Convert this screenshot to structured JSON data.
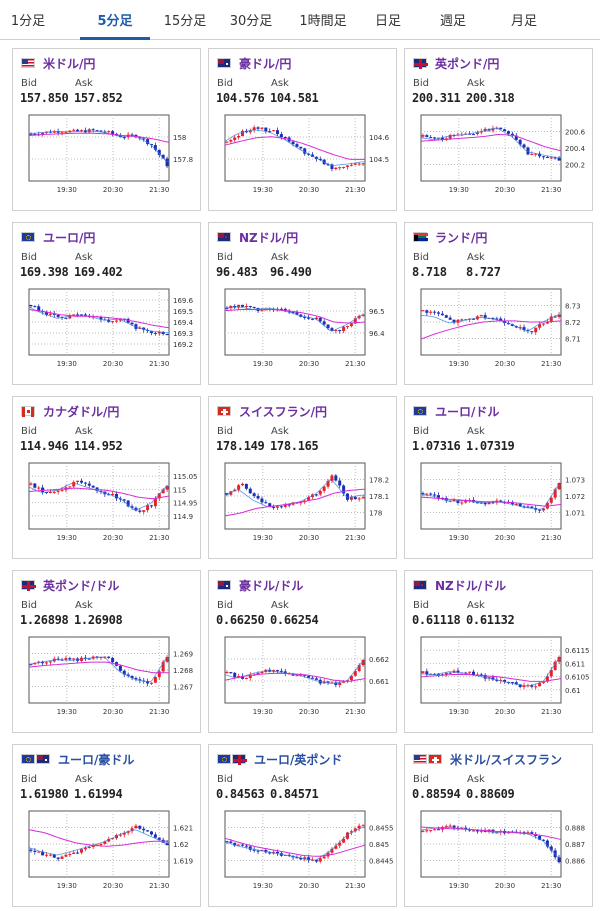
{
  "tabs": [
    {
      "label": "1分足",
      "active": false
    },
    {
      "label": "5分足",
      "active": true
    },
    {
      "label": "15分足",
      "active": false
    },
    {
      "label": "30分足",
      "active": false
    },
    {
      "label": "1時間足",
      "active": false
    },
    {
      "label": "日足",
      "active": false
    },
    {
      "label": "週足",
      "active": false
    },
    {
      "label": "月足",
      "active": false
    }
  ],
  "labels": {
    "bid": "Bid",
    "ask": "Ask"
  },
  "colors": {
    "up": "#e8202a",
    "down": "#1a2fb8",
    "ma": "#d82bd8",
    "ma2": "#2f7fd9",
    "title_link": "#6b2fa0"
  },
  "pairs": [
    {
      "name": "米ドル/円",
      "flag": "us",
      "bid": "157.850",
      "ask": "157.852",
      "ticks": [
        "158",
        "157.8"
      ],
      "times": [
        "19:30",
        "20:30",
        "21:30"
      ],
      "trend": [
        0.75,
        0.78,
        0.8,
        0.79,
        0.81,
        0.78,
        0.7,
        0.72,
        0.55,
        0.2
      ],
      "ma": [
        0.72,
        0.74,
        0.75,
        0.76,
        0.76,
        0.75,
        0.72,
        0.7,
        0.66,
        0.6
      ]
    },
    {
      "name": "豪ドル/円",
      "flag": "au",
      "bid": "104.576",
      "ask": "104.581",
      "ticks": [
        "104.6",
        "104.5"
      ],
      "times": [
        "19:30",
        "20:30",
        "21:30"
      ],
      "trend": [
        0.6,
        0.78,
        0.85,
        0.8,
        0.65,
        0.45,
        0.3,
        0.15,
        0.2,
        0.25
      ],
      "ma": [
        0.55,
        0.62,
        0.68,
        0.7,
        0.66,
        0.58,
        0.48,
        0.38,
        0.3,
        0.3
      ]
    },
    {
      "name": "英ポンド/円",
      "flag": "gb",
      "bid": "200.311",
      "ask": "200.318",
      "ticks": [
        "200.6",
        "200.4",
        "200.2"
      ],
      "times": [
        "19:30",
        "20:30",
        "21:30"
      ],
      "trend": [
        0.7,
        0.65,
        0.72,
        0.75,
        0.8,
        0.88,
        0.7,
        0.4,
        0.35,
        0.3
      ],
      "ma": [
        0.62,
        0.64,
        0.66,
        0.68,
        0.7,
        0.74,
        0.72,
        0.62,
        0.52,
        0.45
      ]
    },
    {
      "name": "ユーロ/円",
      "flag": "eu",
      "bid": "169.398",
      "ask": "169.402",
      "ticks": [
        "169.6",
        "169.5",
        "169.4",
        "169.3",
        "169.2"
      ],
      "times": [
        "19:30",
        "20:30",
        "21:30"
      ],
      "trend": [
        0.8,
        0.65,
        0.55,
        0.62,
        0.6,
        0.52,
        0.55,
        0.4,
        0.32,
        0.3
      ],
      "ma": [
        0.72,
        0.68,
        0.63,
        0.6,
        0.6,
        0.58,
        0.55,
        0.5,
        0.44,
        0.4
      ]
    },
    {
      "name": "NZドル/円",
      "flag": "nz",
      "bid": "96.483",
      "ask": "96.490",
      "ticks": [
        "96.5",
        "96.4"
      ],
      "times": [
        "19:30",
        "20:30",
        "21:30"
      ],
      "trend": [
        0.75,
        0.78,
        0.72,
        0.75,
        0.7,
        0.6,
        0.55,
        0.3,
        0.45,
        0.65
      ],
      "ma": [
        0.7,
        0.72,
        0.72,
        0.72,
        0.7,
        0.66,
        0.6,
        0.5,
        0.48,
        0.5
      ]
    },
    {
      "name": "ランド/円",
      "flag": "za",
      "bid": "8.718",
      "ask": "8.727",
      "ticks": [
        "8.73",
        "8.72",
        "8.71"
      ],
      "times": [
        "19:30",
        "20:30",
        "21:30"
      ],
      "trend": [
        0.7,
        0.65,
        0.5,
        0.55,
        0.6,
        0.55,
        0.45,
        0.3,
        0.5,
        0.65
      ],
      "ma": [
        0.2,
        0.3,
        0.38,
        0.45,
        0.5,
        0.52,
        0.52,
        0.5,
        0.5,
        0.52
      ]
    },
    {
      "name": "カナダドル/円",
      "flag": "ca",
      "bid": "114.946",
      "ask": "114.952",
      "ticks": [
        "115.05",
        "115",
        "114.95",
        "114.9"
      ],
      "times": [
        "19:30",
        "20:30",
        "21:30"
      ],
      "trend": [
        0.7,
        0.55,
        0.6,
        0.75,
        0.65,
        0.55,
        0.45,
        0.2,
        0.35,
        0.7
      ],
      "ma": [
        0.58,
        0.6,
        0.62,
        0.64,
        0.62,
        0.6,
        0.55,
        0.48,
        0.45,
        0.5
      ]
    },
    {
      "name": "スイスフラン/円",
      "flag": "ch",
      "bid": "178.149",
      "ask": "178.165",
      "ticks": [
        "178.2",
        "178.1",
        "178"
      ],
      "times": [
        "19:30",
        "20:30",
        "21:30"
      ],
      "trend": [
        0.55,
        0.7,
        0.45,
        0.3,
        0.35,
        0.4,
        0.55,
        0.85,
        0.45,
        0.5
      ],
      "ma": [
        0.15,
        0.2,
        0.28,
        0.32,
        0.35,
        0.4,
        0.45,
        0.55,
        0.6,
        0.62
      ]
    },
    {
      "name": "ユーロ/ドル",
      "flag": "eu",
      "bid": "1.07316",
      "ask": "1.07319",
      "ticks": [
        "1.073",
        "1.072",
        "1.071"
      ],
      "times": [
        "19:30",
        "20:30",
        "21:30"
      ],
      "trend": [
        0.55,
        0.5,
        0.4,
        0.42,
        0.38,
        0.4,
        0.35,
        0.28,
        0.25,
        0.75
      ],
      "ma": [
        0.48,
        0.46,
        0.44,
        0.42,
        0.4,
        0.4,
        0.38,
        0.35,
        0.32,
        0.35
      ]
    },
    {
      "name": "英ポンド/ドル",
      "flag": "gb",
      "bid": "1.26898",
      "ask": "1.26908",
      "ticks": [
        "1.269",
        "1.268",
        "1.267"
      ],
      "times": [
        "19:30",
        "20:30",
        "21:30"
      ],
      "trend": [
        0.6,
        0.65,
        0.7,
        0.68,
        0.72,
        0.75,
        0.45,
        0.3,
        0.25,
        0.75
      ],
      "ma": [
        0.55,
        0.58,
        0.6,
        0.62,
        0.64,
        0.64,
        0.58,
        0.5,
        0.45,
        0.45
      ]
    },
    {
      "name": "豪ドル/ドル",
      "flag": "au",
      "bid": "0.66250",
      "ask": "0.66254",
      "ticks": [
        "0.662",
        "0.661"
      ],
      "times": [
        "19:30",
        "20:30",
        "21:30"
      ],
      "trend": [
        0.45,
        0.35,
        0.45,
        0.5,
        0.45,
        0.4,
        0.3,
        0.25,
        0.3,
        0.7
      ],
      "ma": [
        0.32,
        0.38,
        0.42,
        0.44,
        0.44,
        0.42,
        0.38,
        0.32,
        0.3,
        0.35
      ]
    },
    {
      "name": "NZドル/ドル",
      "flag": "nz",
      "bid": "0.61118",
      "ask": "0.61132",
      "ticks": [
        "0.6115",
        "0.611",
        "0.6105",
        "0.61"
      ],
      "times": [
        "19:30",
        "20:30",
        "21:30"
      ],
      "trend": [
        0.45,
        0.42,
        0.48,
        0.45,
        0.38,
        0.32,
        0.25,
        0.2,
        0.28,
        0.75
      ],
      "ma": [
        0.38,
        0.4,
        0.42,
        0.42,
        0.4,
        0.38,
        0.34,
        0.3,
        0.3,
        0.35
      ]
    },
    {
      "name": "ユーロ/豪ドル",
      "flag": "euau",
      "bid": "1.61980",
      "ask": "1.61994",
      "ticks": [
        "1.621",
        "1.62",
        "1.619"
      ],
      "times": [
        "19:30",
        "20:30",
        "21:30"
      ],
      "trend": [
        0.4,
        0.3,
        0.25,
        0.35,
        0.45,
        0.55,
        0.7,
        0.8,
        0.65,
        0.5
      ],
      "ma": [
        0.75,
        0.7,
        0.6,
        0.52,
        0.48,
        0.46,
        0.48,
        0.52,
        0.55,
        0.55
      ]
    },
    {
      "name": "ユーロ/英ポンド",
      "flag": "eugb",
      "bid": "0.84563",
      "ask": "0.84571",
      "ticks": [
        "0.8455",
        "0.845",
        "0.8445"
      ],
      "times": [
        "19:30",
        "20:30",
        "21:30"
      ],
      "trend": [
        0.55,
        0.45,
        0.4,
        0.35,
        0.3,
        0.25,
        0.2,
        0.4,
        0.7,
        0.85
      ],
      "ma": [
        0.6,
        0.52,
        0.45,
        0.4,
        0.35,
        0.3,
        0.28,
        0.32,
        0.4,
        0.48
      ]
    },
    {
      "name": "米ドル/スイスフラン",
      "flag": "usch",
      "bid": "0.88594",
      "ask": "0.88609",
      "ticks": [
        "0.888",
        "0.887",
        "0.886"
      ],
      "times": [
        "19:30",
        "20:30",
        "21:30"
      ],
      "trend": [
        0.72,
        0.78,
        0.8,
        0.76,
        0.74,
        0.7,
        0.72,
        0.68,
        0.55,
        0.2
      ],
      "ma": [
        0.8,
        0.78,
        0.77,
        0.76,
        0.74,
        0.72,
        0.7,
        0.68,
        0.64,
        0.58
      ]
    }
  ]
}
